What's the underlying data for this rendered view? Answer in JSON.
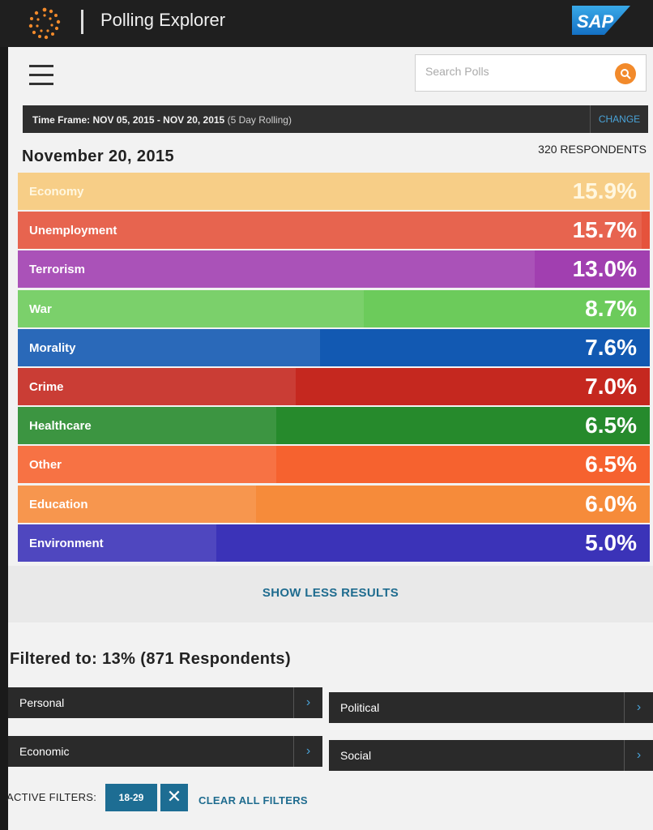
{
  "header": {
    "app_title": "Polling Explorer",
    "brand": "SAP"
  },
  "search": {
    "placeholder": "Search Polls"
  },
  "timeframe": {
    "label": "Time Frame: NOV 05, 2015 - NOV 20, 2015",
    "rolling": "(5 Day Rolling)",
    "change_label": "CHANGE"
  },
  "results": {
    "date": "November 20, 2015",
    "respondents": "320 RESPONDENTS",
    "items": [
      {
        "label": "Economy",
        "value": "15.9%",
        "pct": 15.9,
        "color": "#f7c97a",
        "text_color": "#fff7e0"
      },
      {
        "label": "Unemployment",
        "value": "15.7%",
        "pct": 15.7,
        "color": "#e5533c",
        "text_color": "#ffffff"
      },
      {
        "label": "Terrorism",
        "value": "13.0%",
        "pct": 13.0,
        "color": "#a13fb0",
        "text_color": "#ffffff"
      },
      {
        "label": "War",
        "value": "8.7%",
        "pct": 8.7,
        "color": "#6ccb5b",
        "text_color": "#ffffff"
      },
      {
        "label": "Morality",
        "value": "7.6%",
        "pct": 7.6,
        "color": "#1259b2",
        "text_color": "#ffffff"
      },
      {
        "label": "Crime",
        "value": "7.0%",
        "pct": 7.0,
        "color": "#c5281f",
        "text_color": "#ffffff"
      },
      {
        "label": "Healthcare",
        "value": "6.5%",
        "pct": 6.5,
        "color": "#268a2c",
        "text_color": "#ffffff"
      },
      {
        "label": "Other",
        "value": "6.5%",
        "pct": 6.5,
        "color": "#f6622f",
        "text_color": "#ffffff"
      },
      {
        "label": "Education",
        "value": "6.0%",
        "pct": 6.0,
        "color": "#f68b3a",
        "text_color": "#ffffff"
      },
      {
        "label": "Environment",
        "value": "5.0%",
        "pct": 5.0,
        "color": "#3b33b8",
        "text_color": "#ffffff"
      }
    ],
    "show_less_label": "SHOW LESS RESULTS"
  },
  "filters": {
    "title": "Filtered to: 13% (871 Respondents)",
    "categories": {
      "personal": "Personal",
      "political": "Political",
      "economic": "Economic",
      "social": "Social"
    },
    "arrow_glyph": "›",
    "active_label": "ACTIVE FILTERS:",
    "active_chip": "18-29",
    "chip_close_glyph": "✕",
    "clear_all_label": "CLEAR ALL FILTERS"
  },
  "icons": {
    "logo": "orbit-logo-icon",
    "menu": "hamburger-menu-icon",
    "search": "search-icon",
    "arrow": "chevron-right-icon",
    "close": "close-icon"
  },
  "colors": {
    "accent": "#1d6d93",
    "search_button": "#f28a2b",
    "link": "#4aa3d8"
  }
}
